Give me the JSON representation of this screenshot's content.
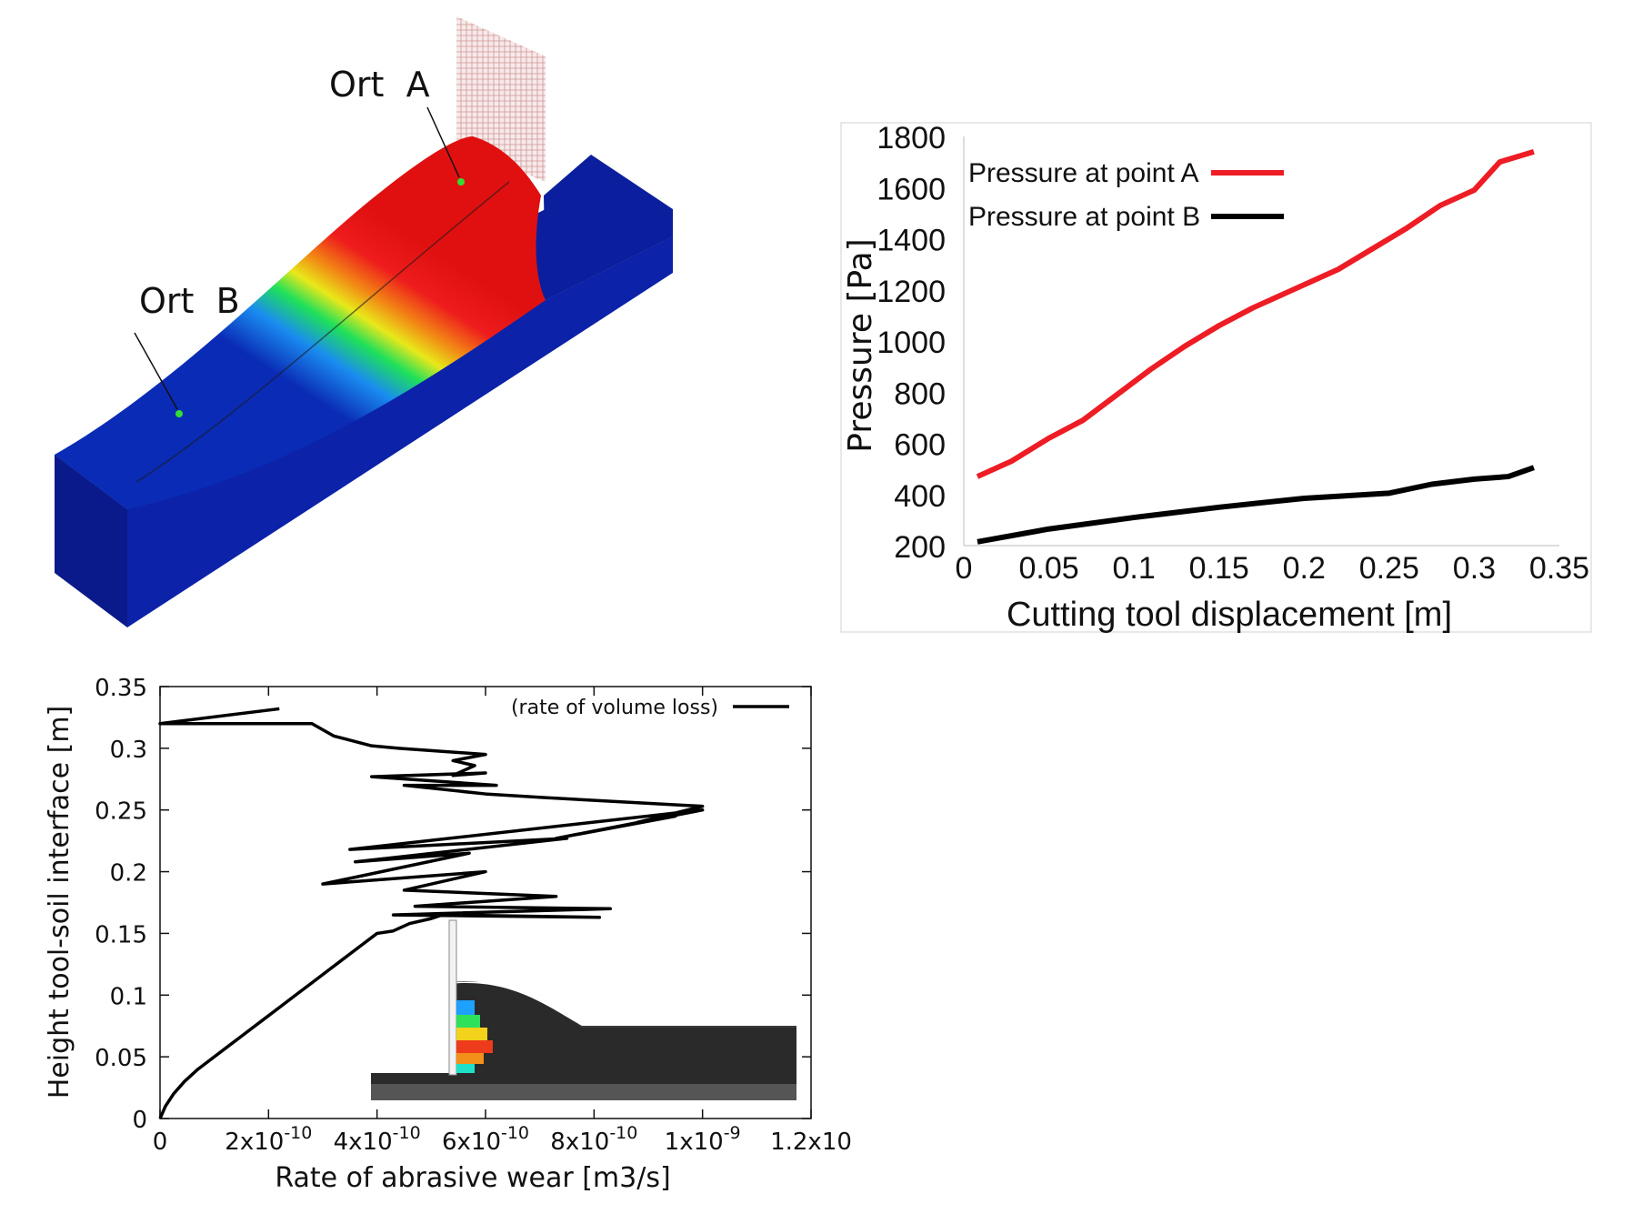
{
  "simulation": {
    "label_a": "Ort  A",
    "label_b": "Ort  B"
  },
  "chart_data": [
    {
      "type": "line",
      "xlabel": "Cutting tool displacement [m]",
      "ylabel": "Pressure [Pa]",
      "xlim": [
        0,
        0.35
      ],
      "ylim": [
        200,
        1800
      ],
      "xticks": [
        0,
        0.05,
        0.1,
        0.15,
        0.2,
        0.25,
        0.3,
        0.35
      ],
      "xtick_labels": [
        "0",
        "0.05",
        "0.1",
        "0.15",
        "0.2",
        "0.25",
        "0.3",
        "0.35"
      ],
      "yticks": [
        200,
        400,
        600,
        800,
        1000,
        1200,
        1400,
        1600,
        1800
      ],
      "ytick_labels": [
        "200",
        "400",
        "600",
        "800",
        "1000",
        "1200",
        "1400",
        "1600",
        "1800"
      ],
      "legend_position": "top-left",
      "grid": false,
      "series": [
        {
          "name": "Pressure at point A",
          "color": "#ee1c24",
          "x": [
            0.008,
            0.028,
            0.05,
            0.07,
            0.09,
            0.11,
            0.13,
            0.15,
            0.17,
            0.19,
            0.22,
            0.24,
            0.26,
            0.28,
            0.3,
            0.315,
            0.335
          ],
          "y": [
            470,
            530,
            620,
            690,
            790,
            890,
            980,
            1060,
            1130,
            1190,
            1280,
            1360,
            1440,
            1530,
            1590,
            1700,
            1740
          ]
        },
        {
          "name": "Pressure at point B",
          "color": "#000000",
          "x": [
            0.008,
            0.05,
            0.1,
            0.15,
            0.2,
            0.25,
            0.275,
            0.3,
            0.32,
            0.335
          ],
          "y": [
            215,
            265,
            310,
            350,
            385,
            405,
            440,
            460,
            470,
            505
          ]
        }
      ]
    },
    {
      "type": "line",
      "xlabel": "Rate of abrasive wear [m3/s]",
      "ylabel": "Height tool-soil interface [m]",
      "xlim": [
        0,
        1.2e-09
      ],
      "ylim": [
        0,
        0.35
      ],
      "xtick_labels": [
        "0",
        "2x10-10",
        "4x10-10",
        "6x10-10",
        "8x10-10",
        "1x10-9",
        "1.2x10"
      ],
      "ytick_labels": [
        "0",
        "0.05",
        "0.1",
        "0.15",
        "0.2",
        "0.25",
        "0.3",
        "0.35"
      ],
      "legend_position": "top-right",
      "grid": false,
      "series": [
        {
          "name": "(rate of volume loss)",
          "color": "#000000",
          "x": [
            0,
            1e-11,
            2.5e-11,
            4.5e-11,
            7e-11,
            1e-10,
            1.3e-10,
            1.6e-10,
            1.9e-10,
            2.2e-10,
            2.5e-10,
            2.8e-10,
            3.1e-10,
            3.4e-10,
            3.7e-10,
            4e-10,
            4.3e-10,
            4.6e-10,
            5e-10,
            5.2e-10,
            8.1e-10,
            4.3e-10,
            8.3e-10,
            4.7e-10,
            7.3e-10,
            4.5e-10,
            6e-10,
            3e-10,
            5.7e-10,
            3.6e-10,
            7.5e-10,
            3.5e-10,
            1e-09,
            7.3e-10,
            9.5e-10,
            8.8e-10,
            1e-09,
            7.1e-10,
            6e-10,
            4.5e-10,
            6.2e-10,
            3.9e-10,
            6e-10,
            5.4e-10,
            5.8e-10,
            5.4e-10,
            6e-10,
            4.4e-10,
            3.9e-10,
            3.9e-10,
            3.2e-10,
            2.8e-10,
            0,
            2.2e-10
          ],
          "y": [
            0.0,
            0.01,
            0.02,
            0.03,
            0.04,
            0.05,
            0.06,
            0.07,
            0.08,
            0.09,
            0.1,
            0.11,
            0.12,
            0.13,
            0.14,
            0.15,
            0.152,
            0.158,
            0.162,
            0.165,
            0.163,
            0.165,
            0.17,
            0.172,
            0.18,
            0.185,
            0.2,
            0.19,
            0.215,
            0.208,
            0.227,
            0.218,
            0.25,
            0.227,
            0.245,
            0.24,
            0.253,
            0.26,
            0.263,
            0.27,
            0.27,
            0.277,
            0.28,
            0.278,
            0.286,
            0.29,
            0.295,
            0.3,
            0.302,
            0.302,
            0.31,
            0.32,
            0.32,
            0.332
          ]
        }
      ]
    }
  ]
}
